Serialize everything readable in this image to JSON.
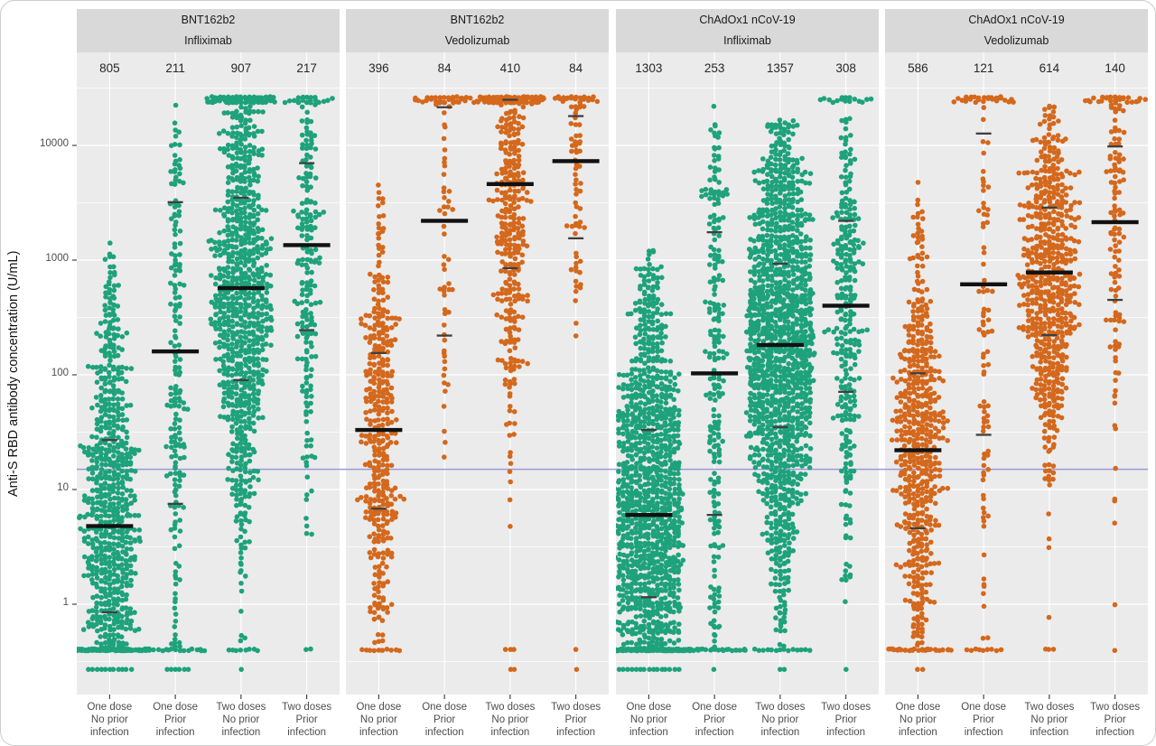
{
  "figure": {
    "y_axis_title": "Anti-S RBD antibody concentration (U/mL)",
    "y_ticks": [
      {
        "label": "10000",
        "value": 10000
      },
      {
        "label": "1000",
        "value": 1000
      },
      {
        "label": "100",
        "value": 100
      },
      {
        "label": "10",
        "value": 10
      },
      {
        "label": "1",
        "value": 1
      }
    ],
    "colors": {
      "infliximab_points": "#1EA27B",
      "vedolizumab_points": "#D4681C",
      "threshold_line": "#9B99DB",
      "panel_bg": "#EBEBEB",
      "strip_bg": "#D9D9D9",
      "gridline": "#FFFFFF",
      "median_bar": "#111111",
      "quartile_tick": "#3F3F3F",
      "axis_text": "#4D4D4D"
    }
  },
  "chart_data": {
    "type": "scatter",
    "variant": "beeswarm-jitter, log y axis, faceted by vaccine and drug",
    "ylabel": "Anti-S RBD antibody concentration (U/mL)",
    "y_scale": "log10",
    "ylim": [
      0.25,
      25000
    ],
    "assay_cap": 25000,
    "detection_floor": 0.4,
    "threshold": {
      "value": 15,
      "label": "seroconversion threshold line"
    },
    "summary_marks": "thick black bar = median, short dark ticks = quartiles",
    "panels": [
      {
        "vaccine": "BNT162b2",
        "drug": "Infliximab",
        "series_color": "#1EA27B",
        "groups": [
          {
            "label_lines": [
              "One dose",
              "No prior",
              "infection"
            ],
            "n": 805,
            "median": 4.8,
            "q1": 0.85,
            "q3": 27,
            "min": 0.25,
            "max": 1700,
            "outliers_low": 0
          },
          {
            "label_lines": [
              "One dose",
              "Prior",
              "infection"
            ],
            "n": 211,
            "median": 160,
            "q1": 7.5,
            "q3": 3200,
            "min": 0.27,
            "max": 23000,
            "outliers_low": 0
          },
          {
            "label_lines": [
              "Two doses",
              "No prior",
              "infection"
            ],
            "n": 907,
            "median": 570,
            "q1": 90,
            "q3": 3500,
            "min": 0.3,
            "max": 25000,
            "outliers_low": 6
          },
          {
            "label_lines": [
              "Two doses",
              "Prior",
              "infection"
            ],
            "n": 217,
            "median": 1350,
            "q1": 245,
            "q3": 7000,
            "min": 0.3,
            "max": 25000,
            "outliers_low": 1
          }
        ]
      },
      {
        "vaccine": "BNT162b2",
        "drug": "Vedolizumab",
        "series_color": "#D4681C",
        "groups": [
          {
            "label_lines": [
              "One dose",
              "No prior",
              "infection"
            ],
            "n": 396,
            "median": 33,
            "q1": 6.8,
            "q3": 155,
            "min": 0.3,
            "max": 6800,
            "outliers_low": 0
          },
          {
            "label_lines": [
              "One dose",
              "Prior",
              "infection"
            ],
            "n": 84,
            "median": 2200,
            "q1": 220,
            "q3": 21500,
            "min": 13,
            "max": 25000,
            "outliers_low": 0
          },
          {
            "label_lines": [
              "Two doses",
              "No prior",
              "infection"
            ],
            "n": 410,
            "median": 4600,
            "q1": 850,
            "q3": 25000,
            "min": 0.3,
            "max": 25000,
            "outliers_low": 5
          },
          {
            "label_lines": [
              "Two doses",
              "Prior",
              "infection"
            ],
            "n": 84,
            "median": 7300,
            "q1": 1550,
            "q3": 18000,
            "min": 2,
            "max": 25000,
            "outliers_low": 2
          }
        ]
      },
      {
        "vaccine": "ChAdOx1 nCoV-19",
        "drug": "Infliximab",
        "series_color": "#1EA27B",
        "groups": [
          {
            "label_lines": [
              "One dose",
              "No prior",
              "infection"
            ],
            "n": 1303,
            "median": 6,
            "q1": 1.15,
            "q3": 33,
            "min": 0.25,
            "max": 1500,
            "outliers_low": 0
          },
          {
            "label_lines": [
              "One dose",
              "Prior",
              "infection"
            ],
            "n": 253,
            "median": 103,
            "q1": 6,
            "q3": 1750,
            "min": 0.27,
            "max": 23500,
            "outliers_low": 0
          },
          {
            "label_lines": [
              "Two doses",
              "No prior",
              "infection"
            ],
            "n": 1357,
            "median": 182,
            "q1": 35,
            "q3": 930,
            "min": 0.3,
            "max": 18000,
            "outliers_low": 6
          },
          {
            "label_lines": [
              "Two doses",
              "Prior",
              "infection"
            ],
            "n": 308,
            "median": 400,
            "q1": 71,
            "q3": 2200,
            "min": 0.35,
            "max": 25000,
            "outliers_low": 1
          }
        ]
      },
      {
        "vaccine": "ChAdOx1 nCoV-19",
        "drug": "Vedolizumab",
        "series_color": "#D4681C",
        "groups": [
          {
            "label_lines": [
              "One dose",
              "No prior",
              "infection"
            ],
            "n": 586,
            "median": 22,
            "q1": 4.6,
            "q3": 103,
            "min": 0.3,
            "max": 5000,
            "outliers_low": 0
          },
          {
            "label_lines": [
              "One dose",
              "Prior",
              "infection"
            ],
            "n": 121,
            "median": 615,
            "q1": 30,
            "q3": 12700,
            "min": 0.3,
            "max": 25000,
            "outliers_low": 3
          },
          {
            "label_lines": [
              "Two doses",
              "No prior",
              "infection"
            ],
            "n": 614,
            "median": 780,
            "q1": 222,
            "q3": 2870,
            "min": 0.3,
            "max": 22000,
            "outliers_low": 3
          },
          {
            "label_lines": [
              "Two doses",
              "Prior",
              "infection"
            ],
            "n": 140,
            "median": 2140,
            "q1": 450,
            "q3": 9800,
            "min": 0.9,
            "max": 25000,
            "outliers_low": 1
          }
        ]
      }
    ]
  }
}
